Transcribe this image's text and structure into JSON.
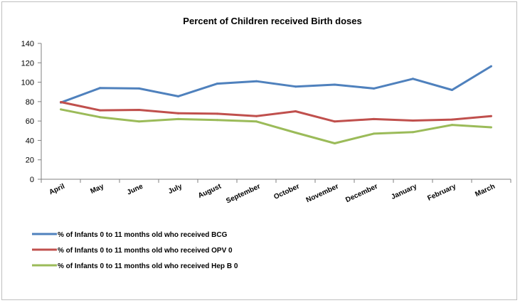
{
  "chart_data": {
    "type": "line",
    "title": "Percent of Children received Birth doses",
    "xlabel": "",
    "ylabel": "",
    "ylim": [
      0,
      140
    ],
    "yticks": [
      0,
      20,
      40,
      60,
      80,
      100,
      120,
      140
    ],
    "grid": false,
    "legend_position": "bottom-left",
    "categories": [
      "April",
      "May",
      "June",
      "July",
      "August",
      "September",
      "October",
      "November",
      "December",
      "January",
      "February",
      "March"
    ],
    "series": [
      {
        "name": "% of Infants 0 to 11 months old who received BCG",
        "color": "#4f81bd",
        "values": [
          79,
          94,
          93.5,
          85.5,
          98.5,
          101,
          95.5,
          97.5,
          93.5,
          103.5,
          92,
          116.5
        ]
      },
      {
        "name": "% of Infants 0 to 11 months old who received OPV 0",
        "color": "#c0504d",
        "values": [
          79.5,
          71,
          71.5,
          68,
          67.5,
          65,
          70,
          59.5,
          62,
          60.5,
          61.5,
          65
        ]
      },
      {
        "name": "% of Infants 0 to 11 months old who received Hep B 0",
        "color": "#9bbb59",
        "values": [
          72,
          64,
          59.5,
          62,
          61,
          59.5,
          48,
          37,
          47,
          48.5,
          56,
          53.5
        ]
      }
    ]
  }
}
